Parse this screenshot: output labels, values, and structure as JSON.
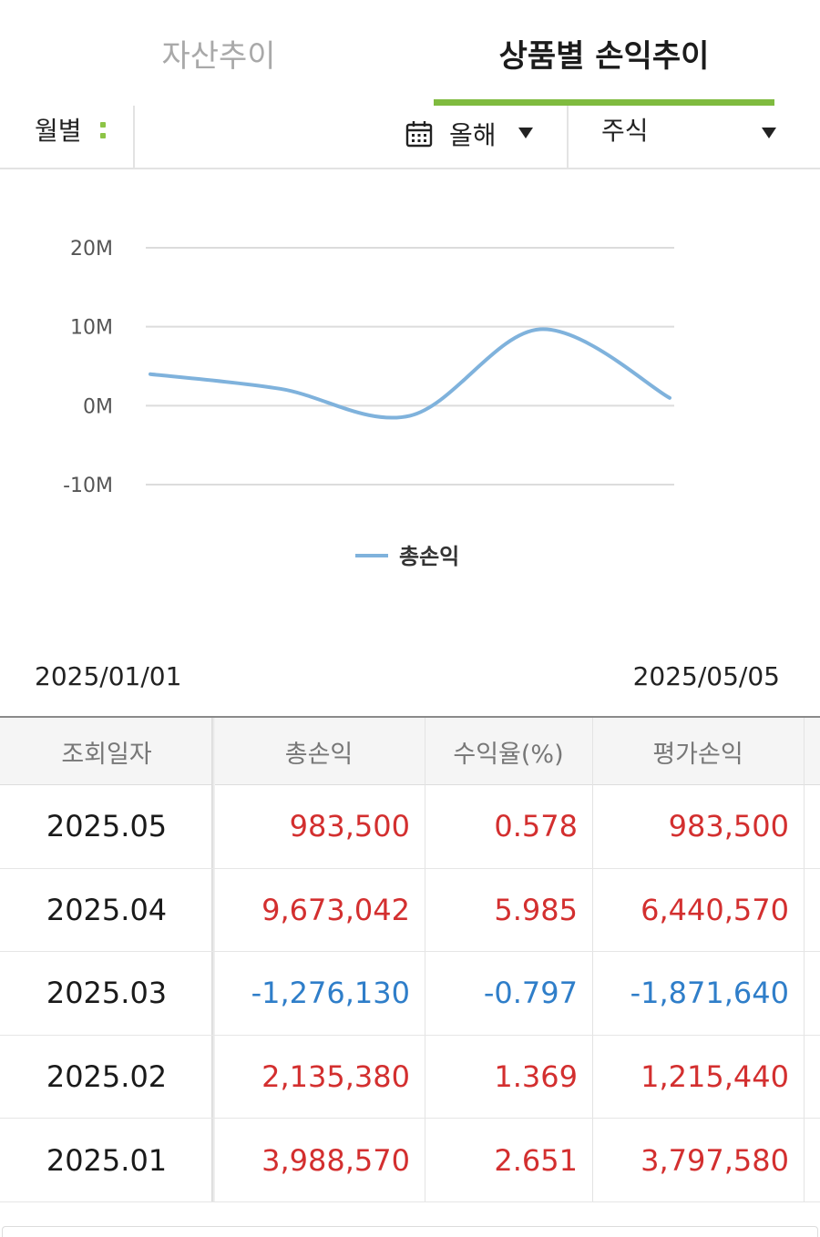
{
  "tabs": [
    {
      "label": "자산추이",
      "active": false
    },
    {
      "label": "상품별 손익추이",
      "active": true
    }
  ],
  "filters": {
    "period_label": "월별",
    "year_label": "올해",
    "product_label": "주식"
  },
  "chart_data": {
    "type": "line",
    "x": [
      "2025.01",
      "2025.02",
      "2025.03",
      "2025.04",
      "2025.05"
    ],
    "series": [
      {
        "name": "총손익",
        "values": [
          3988570,
          2135380,
          -1276130,
          9673042,
          983500
        ],
        "color": "#7fb2dc"
      }
    ],
    "yticks": [
      "20M",
      "10M",
      "0M",
      "-10M"
    ],
    "ylim": [
      -10000000,
      20000000
    ],
    "grid": true,
    "legend": "bottom-center"
  },
  "dates": {
    "start": "2025/01/01",
    "end": "2025/05/05"
  },
  "table": {
    "headers": [
      "조회일자",
      "총손익",
      "수익율(%)",
      "평가손익"
    ],
    "rows": [
      {
        "date": "2025.05",
        "total": "983,500",
        "rate": "0.578",
        "eval": "983,500",
        "sign": "pos"
      },
      {
        "date": "2025.04",
        "total": "9,673,042",
        "rate": "5.985",
        "eval": "6,440,570",
        "sign": "pos"
      },
      {
        "date": "2025.03",
        "total": "-1,276,130",
        "rate": "-0.797",
        "eval": "-1,871,640",
        "sign": "neg"
      },
      {
        "date": "2025.02",
        "total": "2,135,380",
        "rate": "1.369",
        "eval": "1,215,440",
        "sign": "pos"
      },
      {
        "date": "2025.01",
        "total": "3,988,570",
        "rate": "2.651",
        "eval": "3,797,580",
        "sign": "pos"
      }
    ]
  },
  "colors": {
    "accent": "#7fbb3f",
    "positive": "#d32f2f",
    "negative": "#2f7ec9",
    "line": "#7fb2dc"
  }
}
